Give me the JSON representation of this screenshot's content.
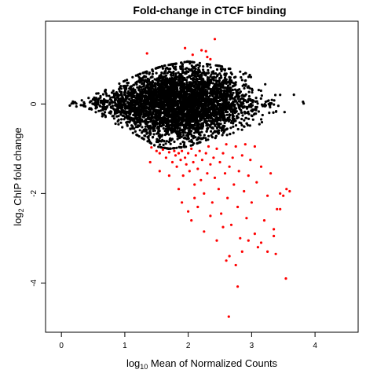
{
  "chart_data": {
    "type": "scatter",
    "title": "Fold-change in CTCF binding",
    "xlabel": {
      "prefix": "log",
      "subscript": "10",
      "suffix": " Mean of Normalized Counts"
    },
    "ylabel": {
      "prefix": "log",
      "subscript": "2",
      "suffix": " ChIP fold change"
    },
    "xlim": [
      -0.25,
      4.68
    ],
    "ylim": [
      -5.1,
      1.85
    ],
    "x_ticks": [
      0,
      1,
      2,
      3,
      4
    ],
    "y_ticks": [
      0,
      -2,
      -4
    ],
    "grid": false,
    "legend": "none",
    "colors": {
      "non_significant": "#000000",
      "significant": "#ff0000"
    },
    "series": [
      {
        "id": "non_significant",
        "color": "#000000",
        "region": {
          "description": "dense cloud of non-significant points",
          "x_range": [
            0.05,
            4.35
          ],
          "y_upper_envelope": [
            [
              0.05,
              0.05
            ],
            [
              0.6,
              0.25
            ],
            [
              1.2,
              0.65
            ],
            [
              1.6,
              0.85
            ],
            [
              2.0,
              0.95
            ],
            [
              2.5,
              0.85
            ],
            [
              3.0,
              0.65
            ],
            [
              3.5,
              0.45
            ],
            [
              4.0,
              0.25
            ],
            [
              4.35,
              0.05
            ]
          ],
          "y_lower_envelope": [
            [
              0.05,
              -0.05
            ],
            [
              0.6,
              -0.25
            ],
            [
              1.2,
              -0.7
            ],
            [
              1.5,
              -0.95
            ],
            [
              1.7,
              -1.0
            ],
            [
              2.0,
              -0.95
            ],
            [
              2.3,
              -0.8
            ],
            [
              2.6,
              -0.7
            ],
            [
              3.0,
              -0.5
            ],
            [
              3.5,
              -0.3
            ],
            [
              4.0,
              -0.2
            ],
            [
              4.35,
              -0.05
            ]
          ]
        }
      },
      {
        "id": "significant",
        "color": "#ff0000",
        "points": [
          [
            2.42,
            1.45
          ],
          [
            1.95,
            1.25
          ],
          [
            2.28,
            1.18
          ],
          [
            2.21,
            1.2
          ],
          [
            2.3,
            1.05
          ],
          [
            2.07,
            1.1
          ],
          [
            2.35,
            1.0
          ],
          [
            1.35,
            1.13
          ],
          [
            1.42,
            -0.97
          ],
          [
            1.5,
            -1.05
          ],
          [
            1.55,
            -1.1
          ],
          [
            1.6,
            -1.02
          ],
          [
            1.65,
            -1.2
          ],
          [
            1.7,
            -1.08
          ],
          [
            1.75,
            -1.3
          ],
          [
            1.78,
            -1.05
          ],
          [
            1.8,
            -1.15
          ],
          [
            1.82,
            -1.4
          ],
          [
            1.85,
            -1.1
          ],
          [
            1.88,
            -1.25
          ],
          [
            1.9,
            -1.05
          ],
          [
            1.92,
            -1.6
          ],
          [
            1.95,
            -1.2
          ],
          [
            1.97,
            -1.35
          ],
          [
            2.0,
            -1.1
          ],
          [
            2.02,
            -1.5
          ],
          [
            2.05,
            -1.0
          ],
          [
            2.08,
            -1.3
          ],
          [
            2.1,
            -1.8
          ],
          [
            2.12,
            -1.15
          ],
          [
            2.15,
            -1.45
          ],
          [
            2.18,
            -1.05
          ],
          [
            2.2,
            -1.7
          ],
          [
            2.22,
            -1.25
          ],
          [
            2.25,
            -2.0
          ],
          [
            2.28,
            -1.1
          ],
          [
            2.3,
            -1.55
          ],
          [
            2.32,
            -0.95
          ],
          [
            2.35,
            -1.35
          ],
          [
            2.38,
            -2.2
          ],
          [
            2.4,
            -1.2
          ],
          [
            2.42,
            -1.65
          ],
          [
            2.45,
            -1.0
          ],
          [
            2.48,
            -1.9
          ],
          [
            2.5,
            -1.3
          ],
          [
            2.52,
            -2.45
          ],
          [
            2.55,
            -1.1
          ],
          [
            2.58,
            -1.55
          ],
          [
            2.6,
            -0.9
          ],
          [
            2.62,
            -2.1
          ],
          [
            2.65,
            -1.4
          ],
          [
            2.68,
            -2.7
          ],
          [
            2.7,
            -1.2
          ],
          [
            2.72,
            -1.8
          ],
          [
            2.75,
            -0.95
          ],
          [
            2.78,
            -2.3
          ],
          [
            2.8,
            -1.5
          ],
          [
            2.82,
            -3.0
          ],
          [
            2.85,
            -1.15
          ],
          [
            2.88,
            -1.95
          ],
          [
            2.9,
            -0.9
          ],
          [
            2.92,
            -2.55
          ],
          [
            2.95,
            -1.6
          ],
          [
            2.98,
            -1.25
          ],
          [
            3.0,
            -2.2
          ],
          [
            3.05,
            -0.95
          ],
          [
            3.08,
            -1.75
          ],
          [
            3.1,
            -3.2
          ],
          [
            3.15,
            -1.4
          ],
          [
            3.2,
            -2.6
          ],
          [
            3.25,
            -2.05
          ],
          [
            3.3,
            -1.55
          ],
          [
            3.35,
            -2.8
          ],
          [
            3.4,
            -2.35
          ],
          [
            3.45,
            -2.0
          ],
          [
            2.05,
            -2.6
          ],
          [
            2.15,
            -2.3
          ],
          [
            2.25,
            -2.85
          ],
          [
            2.35,
            -2.5
          ],
          [
            2.45,
            -3.05
          ],
          [
            2.55,
            -2.75
          ],
          [
            2.65,
            -3.4
          ],
          [
            2.75,
            -3.6
          ],
          [
            2.85,
            -3.3
          ],
          [
            2.95,
            -3.05
          ],
          [
            3.05,
            -2.9
          ],
          [
            3.15,
            -3.1
          ],
          [
            3.25,
            -3.3
          ],
          [
            3.35,
            -2.95
          ],
          [
            3.45,
            -2.35
          ],
          [
            3.5,
            -2.05
          ],
          [
            3.55,
            -1.9
          ],
          [
            3.6,
            -1.95
          ],
          [
            3.54,
            -3.9
          ],
          [
            2.64,
            -4.75
          ],
          [
            2.78,
            -4.08
          ],
          [
            2.6,
            -3.5
          ],
          [
            3.38,
            -3.35
          ],
          [
            1.4,
            -1.3
          ],
          [
            1.55,
            -1.5
          ],
          [
            1.7,
            -1.6
          ],
          [
            1.85,
            -1.9
          ],
          [
            1.9,
            -2.2
          ],
          [
            2.0,
            -2.4
          ],
          [
            2.1,
            -2.1
          ]
        ]
      }
    ]
  }
}
